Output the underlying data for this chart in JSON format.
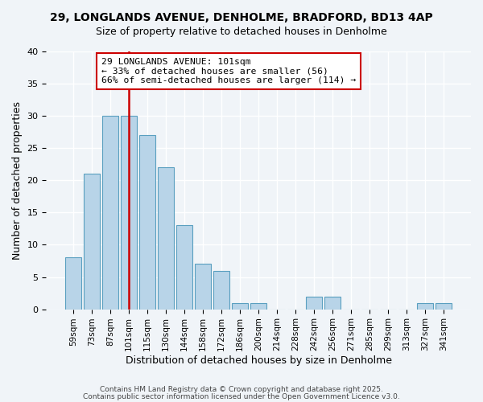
{
  "title1": "29, LONGLANDS AVENUE, DENHOLME, BRADFORD, BD13 4AP",
  "title2": "Size of property relative to detached houses in Denholme",
  "xlabel": "Distribution of detached houses by size in Denholme",
  "ylabel": "Number of detached properties",
  "bar_color": "#b8d4e8",
  "bar_edge_color": "#5a9fc0",
  "categories": [
    "59sqm",
    "73sqm",
    "87sqm",
    "101sqm",
    "115sqm",
    "130sqm",
    "144sqm",
    "158sqm",
    "172sqm",
    "186sqm",
    "200sqm",
    "214sqm",
    "228sqm",
    "242sqm",
    "256sqm",
    "271sqm",
    "285sqm",
    "299sqm",
    "313sqm",
    "327sqm",
    "341sqm"
  ],
  "values": [
    8,
    21,
    30,
    30,
    27,
    22,
    13,
    7,
    6,
    1,
    1,
    0,
    0,
    2,
    2,
    0,
    0,
    0,
    0,
    1,
    1
  ],
  "ylim": [
    0,
    40
  ],
  "yticks": [
    0,
    5,
    10,
    15,
    20,
    25,
    30,
    35,
    40
  ],
  "vline_x": 3,
  "vline_color": "#cc0000",
  "annotation_title": "29 LONGLANDS AVENUE: 101sqm",
  "annotation_line1": "← 33% of detached houses are smaller (56)",
  "annotation_line2": "66% of semi-detached houses are larger (114) →",
  "annotation_box_color": "#ffffff",
  "annotation_box_edge": "#cc0000",
  "background_color": "#f0f4f8",
  "grid_color": "#ffffff",
  "footer1": "Contains HM Land Registry data © Crown copyright and database right 2025.",
  "footer2": "Contains public sector information licensed under the Open Government Licence v3.0."
}
